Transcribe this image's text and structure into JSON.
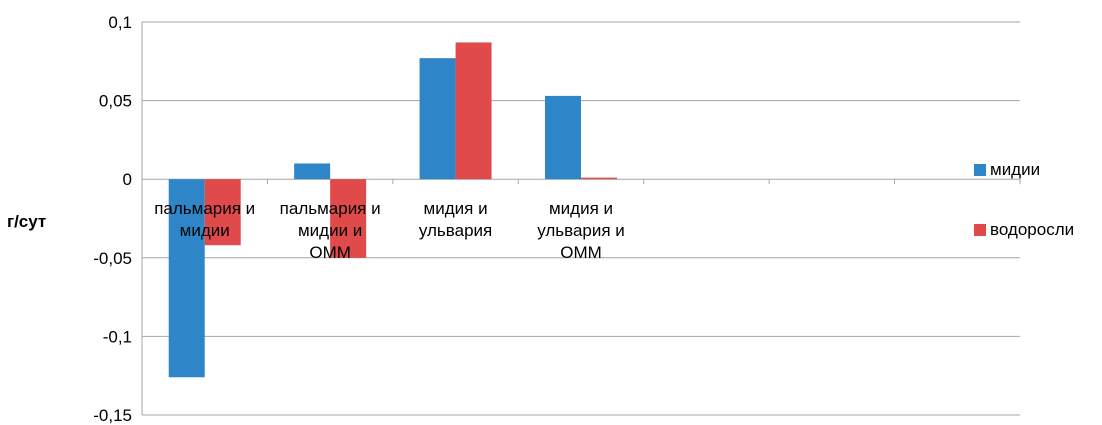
{
  "chart_data": {
    "type": "bar",
    "title": "",
    "xlabel": "",
    "ylabel": "г/сут",
    "ylim": [
      -0.15,
      0.1
    ],
    "yticks": [
      0.1,
      0.05,
      0,
      -0.05,
      -0.1,
      -0.15
    ],
    "ytick_labels": [
      "0,1",
      "0,05",
      "0",
      "-0,05",
      "-0,1",
      "-0,15"
    ],
    "grid": true,
    "legend_position": "right",
    "categories": [
      "пальмария и мидии",
      "пальмария и мидии и ОММ",
      "мидия и ульвария",
      "мидия и ульвария и ОММ",
      "",
      "",
      ""
    ],
    "category_label_lines": [
      [
        "пальмария и",
        "мидии"
      ],
      [
        "пальмария и",
        "мидии и",
        "ОММ"
      ],
      [
        "мидия и",
        "ульвария"
      ],
      [
        "мидия и",
        "ульвария и",
        "ОММ"
      ],
      [],
      [],
      []
    ],
    "series": [
      {
        "name": "мидии",
        "color": "#2e86c8",
        "values": [
          -0.126,
          0.01,
          0.077,
          0.053,
          null,
          null,
          null
        ]
      },
      {
        "name": "водоросли",
        "color": "#e04a4a",
        "values": [
          -0.042,
          -0.05,
          0.087,
          0.001,
          null,
          null,
          null
        ]
      }
    ]
  }
}
